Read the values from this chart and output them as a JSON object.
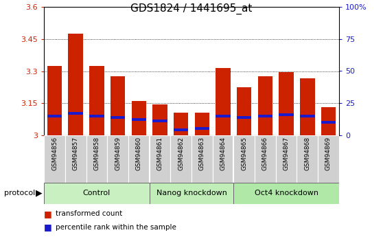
{
  "title": "GDS1824 / 1441695_at",
  "samples": [
    "GSM94856",
    "GSM94857",
    "GSM94858",
    "GSM94859",
    "GSM94860",
    "GSM94861",
    "GSM94862",
    "GSM94863",
    "GSM94864",
    "GSM94865",
    "GSM94866",
    "GSM94867",
    "GSM94868",
    "GSM94869"
  ],
  "red_values": [
    3.325,
    3.475,
    3.325,
    3.275,
    3.16,
    3.145,
    3.105,
    3.105,
    3.315,
    3.225,
    3.275,
    3.295,
    3.265,
    3.13
  ],
  "blue_percentiles": [
    15,
    17,
    15,
    14,
    12,
    11,
    4,
    5,
    15,
    14,
    15,
    16,
    15,
    10
  ],
  "groups": [
    {
      "label": "Control",
      "start": 0,
      "end": 4,
      "color": "#c8f0c0"
    },
    {
      "label": "Nanog knockdown",
      "start": 5,
      "end": 8,
      "color": "#c0edb8"
    },
    {
      "label": "Oct4 knockdown",
      "start": 9,
      "end": 13,
      "color": "#b0e8a8"
    }
  ],
  "ylim_left": [
    3.0,
    3.6
  ],
  "ylim_right": [
    0,
    100
  ],
  "yticks_left": [
    3.0,
    3.15,
    3.3,
    3.45,
    3.6
  ],
  "ytick_labels_left": [
    "3",
    "3.15",
    "3.3",
    "3.45",
    "3.6"
  ],
  "yticks_right": [
    0,
    25,
    50,
    75,
    100
  ],
  "ytick_labels_right": [
    "0",
    "25",
    "50",
    "75",
    "100%"
  ],
  "bar_color_red": "#cc2200",
  "bar_color_blue": "#1a1acc",
  "bar_width": 0.7,
  "ybase": 3.0,
  "xtick_bg_color": "#d0d0d0",
  "protocol_label": "protocol",
  "legend_red": "transformed count",
  "legend_blue": "percentile rank within the sample",
  "title_fontsize": 11
}
